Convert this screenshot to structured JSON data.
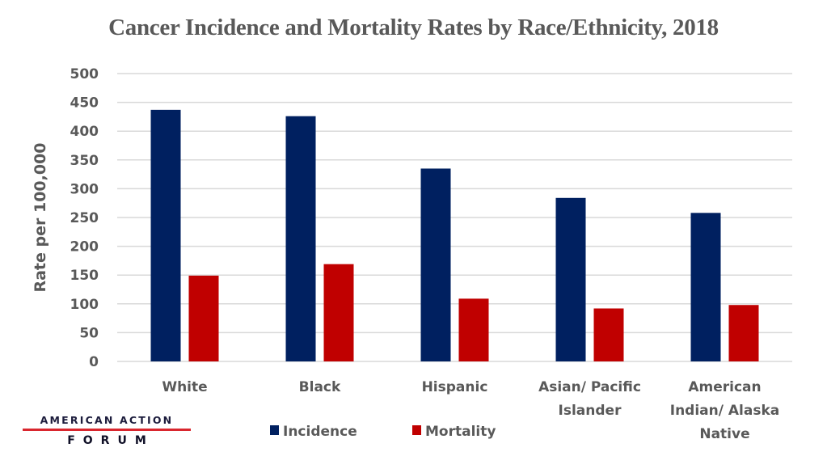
{
  "chart_data": {
    "type": "bar",
    "title": "Cancer Incidence and Mortality Rates by Race/Ethnicity, 2018",
    "xlabel": "",
    "ylabel": "Rate per 100,000",
    "ylim": [
      0,
      500
    ],
    "yticks": [
      0,
      50,
      100,
      150,
      200,
      250,
      300,
      350,
      400,
      450,
      500
    ],
    "grid": true,
    "legend_position": "bottom",
    "categories": [
      [
        "White"
      ],
      [
        "Black"
      ],
      [
        "Hispanic"
      ],
      [
        "Asian/ Pacific",
        "Islander"
      ],
      [
        "American",
        "Indian/ Alaska",
        "Native"
      ]
    ],
    "series": [
      {
        "name": "Incidence",
        "color": "#002060",
        "values": [
          437,
          426,
          335,
          284,
          258
        ]
      },
      {
        "name": "Mortality",
        "color": "#c00000",
        "values": [
          149,
          169,
          109,
          92,
          98
        ]
      }
    ]
  },
  "branding": {
    "line1": "AMERICAN ACTION",
    "line2": "FORUM",
    "accent_color": "#d9262e"
  }
}
